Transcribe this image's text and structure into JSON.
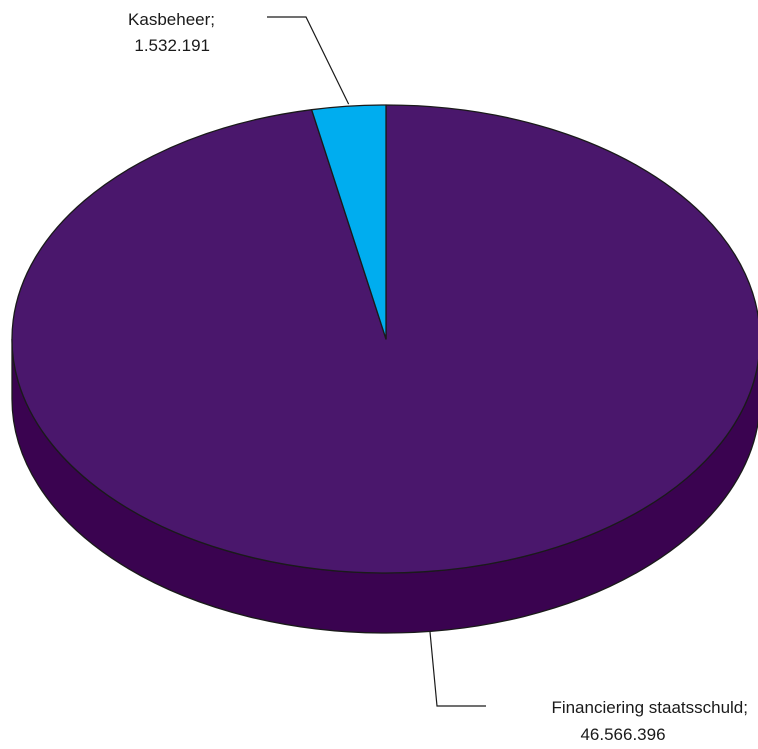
{
  "chart_data": {
    "type": "pie",
    "style": "3d",
    "slices": [
      {
        "label": "Financiering staatsschuld",
        "value": 46566396,
        "value_text": "46.566.396",
        "color": "#4a176c"
      },
      {
        "label": "Kasbeheer",
        "value": 1532191,
        "value_text": "1.532.191",
        "color": "#00adef"
      }
    ],
    "side_colors": {
      "Financiering staatsschuld": "#3a0350",
      "Kasbeheer": "#0088c0"
    },
    "outline_color": "#1a1a1a"
  }
}
